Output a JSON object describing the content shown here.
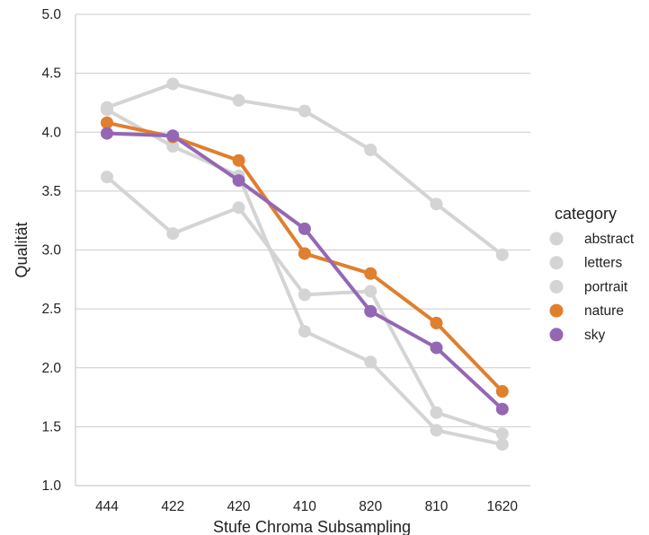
{
  "chart_data": {
    "type": "line",
    "xlabel": "Stufe Chroma Subsampling",
    "ylabel": "Qualität",
    "categories": [
      "444",
      "422",
      "420",
      "410",
      "820",
      "810",
      "1620"
    ],
    "ylim": [
      1.0,
      5.0
    ],
    "yticks": [
      "1.0",
      "1.5",
      "2.0",
      "2.5",
      "3.0",
      "3.5",
      "4.0",
      "4.5",
      "5.0"
    ],
    "grid": "horizontal",
    "legend": {
      "title": "category",
      "placement": "right"
    },
    "series": [
      {
        "name": "abstract",
        "color": "#d4d4d4",
        "values": [
          4.21,
          4.41,
          4.27,
          4.18,
          3.85,
          3.39,
          2.96
        ]
      },
      {
        "name": "letters",
        "color": "#d4d4d4",
        "values": [
          4.19,
          3.88,
          3.63,
          2.31,
          2.05,
          1.47,
          1.35
        ]
      },
      {
        "name": "portrait",
        "color": "#d4d4d4",
        "values": [
          3.62,
          3.14,
          3.36,
          2.62,
          2.65,
          1.62,
          1.44
        ]
      },
      {
        "name": "nature",
        "color": "#e07f2d",
        "values": [
          4.08,
          3.96,
          3.76,
          2.97,
          2.8,
          2.38,
          1.8
        ]
      },
      {
        "name": "sky",
        "color": "#9467b5",
        "values": [
          3.99,
          3.97,
          3.59,
          3.18,
          2.48,
          2.17,
          1.65
        ]
      }
    ]
  }
}
